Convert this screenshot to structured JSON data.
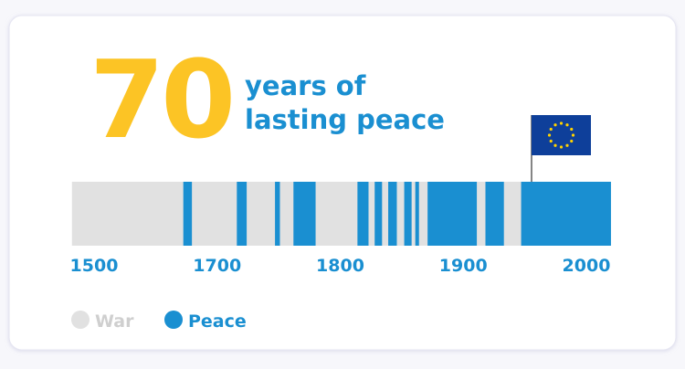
{
  "chart_data": {
    "type": "timeline",
    "title": "70",
    "subtitle_lines": [
      "years of",
      "lasting peace"
    ],
    "xlim": [
      1464,
      2020
    ],
    "xticks": [
      1500,
      1700,
      1800,
      1900,
      2000
    ],
    "series": [
      {
        "name": "War",
        "color": "#e1e1e1"
      },
      {
        "name": "Peace",
        "color": "#1a8fd1",
        "intervals": [
          [
            1645,
            1659
          ],
          [
            1716,
            1724
          ],
          [
            1747,
            1751
          ],
          [
            1762,
            1780
          ],
          [
            1814,
            1823
          ],
          [
            1828,
            1834
          ],
          [
            1839,
            1846
          ],
          [
            1852,
            1858
          ],
          [
            1861,
            1864
          ],
          [
            1871,
            1911
          ],
          [
            1918,
            1933
          ],
          [
            1947,
            2020
          ]
        ]
      }
    ],
    "title_color": "#fcc425",
    "text_color": "#1a8fd1",
    "legend": "bottom-left"
  }
}
